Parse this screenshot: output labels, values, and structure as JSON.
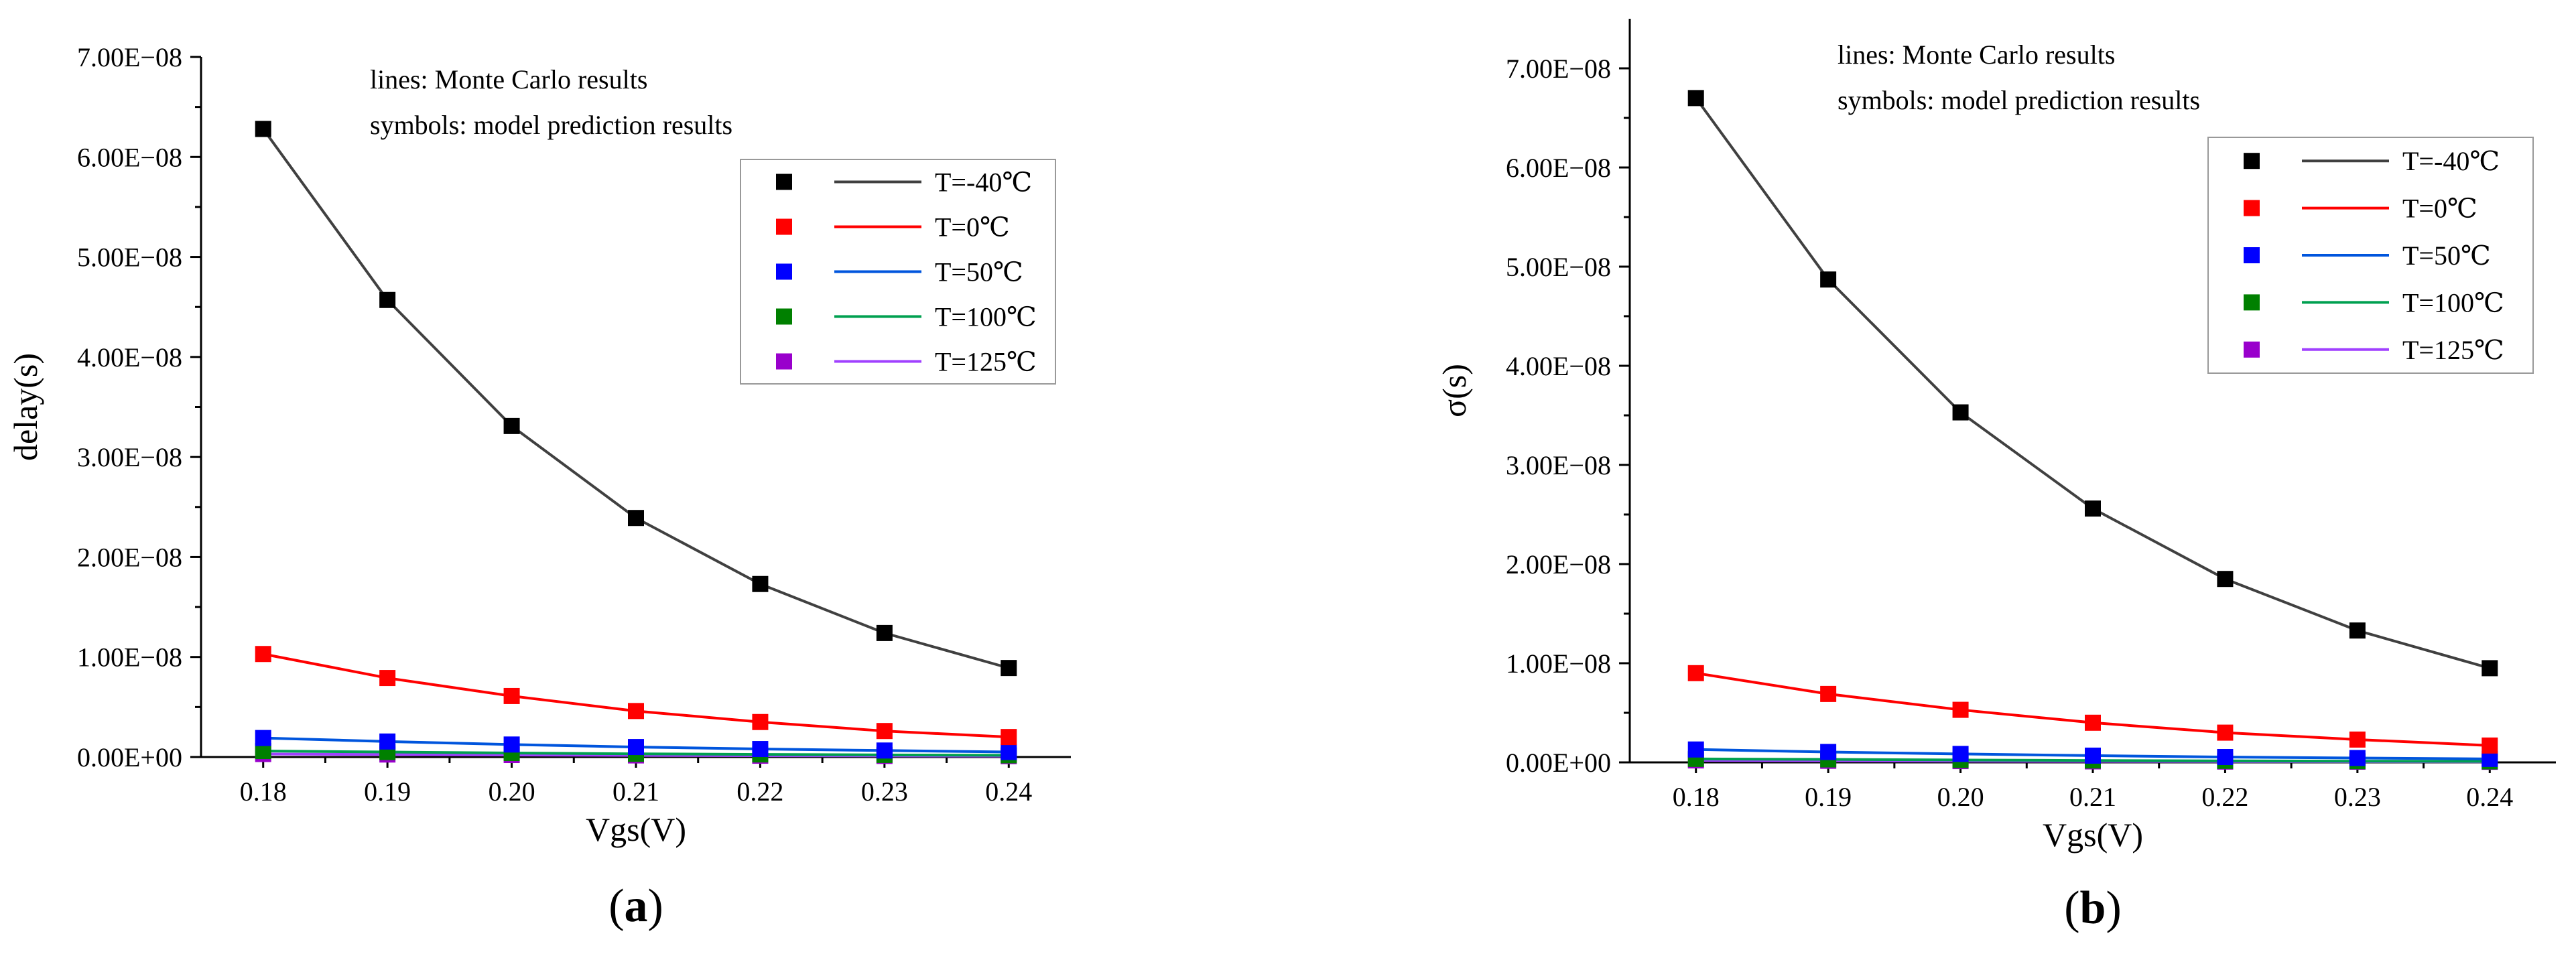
{
  "chart_data": [
    {
      "type": "line",
      "panel_label": "a",
      "title": "",
      "xlabel": "Vgs(V)",
      "ylabel": "delay(s)",
      "xlim": [
        0.175,
        0.245
      ],
      "ylim": [
        0,
        7e-08
      ],
      "x": [
        0.18,
        0.19,
        0.2,
        0.21,
        0.22,
        0.23,
        0.24
      ],
      "x_tick_labels": [
        "0.18",
        "0.19",
        "0.20",
        "0.21",
        "0.22",
        "0.23",
        "0.24"
      ],
      "y_tick_values": [
        0,
        1e-08,
        2e-08,
        3e-08,
        4e-08,
        5e-08,
        6e-08,
        7e-08
      ],
      "y_tick_labels": [
        "0.00E+00",
        "1.00E−08",
        "2.00E−08",
        "3.00E−08",
        "4.00E−08",
        "5.00E−08",
        "6.00E−08",
        "7.00E−08"
      ],
      "annotations": [
        "lines: Monte Carlo results",
        "symbols: model prediction results"
      ],
      "legend_position": "top-right",
      "series": [
        {
          "name": "T=-40℃",
          "color": "#404040",
          "marker_color": "#000000",
          "values": [
            6.28e-08,
            4.57e-08,
            3.31e-08,
            2.39e-08,
            1.73e-08,
            1.24e-08,
            8.9e-09
          ]
        },
        {
          "name": "T=0℃",
          "color": "#ff0000",
          "marker_color": "#ff0000",
          "values": [
            1.03e-08,
            7.9e-09,
            6.1e-09,
            4.6e-09,
            3.5e-09,
            2.6e-09,
            2e-09
          ]
        },
        {
          "name": "T=50℃",
          "color": "#0055dd",
          "marker_color": "#0000ff",
          "values": [
            1.9e-09,
            1.55e-09,
            1.25e-09,
            1e-09,
            8e-10,
            6.5e-10,
            5e-10
          ]
        },
        {
          "name": "T=100℃",
          "color": "#00a050",
          "marker_color": "#008000",
          "values": [
            6e-10,
            5e-10,
            4e-10,
            3.2e-10,
            2.6e-10,
            2.1e-10,
            1.7e-10
          ]
        },
        {
          "name": "T=125℃",
          "color": "#a040ff",
          "marker_color": "#9900cc",
          "values": [
            3e-10,
            2.5e-10,
            2e-10,
            1.6e-10,
            1.3e-10,
            1.1e-10,
            9e-11
          ]
        }
      ]
    },
    {
      "type": "line",
      "panel_label": "b",
      "title": "",
      "xlabel": "Vgs(V)",
      "ylabel": "σ(s)",
      "xlim": [
        0.175,
        0.245
      ],
      "ylim": [
        0,
        7.5e-08
      ],
      "x": [
        0.18,
        0.19,
        0.2,
        0.21,
        0.22,
        0.23,
        0.24
      ],
      "x_tick_labels": [
        "0.18",
        "0.19",
        "0.20",
        "0.21",
        "0.22",
        "0.23",
        "0.24"
      ],
      "y_tick_values": [
        0,
        1e-08,
        2e-08,
        3e-08,
        4e-08,
        5e-08,
        6e-08,
        7e-08
      ],
      "y_tick_labels": [
        "0.00E+00",
        "1.00E−08",
        "2.00E−08",
        "3.00E−08",
        "4.00E−08",
        "5.00E−08",
        "6.00E−08",
        "7.00E−08"
      ],
      "annotations": [
        "lines: Monte Carlo results",
        "symbols: model prediction results"
      ],
      "legend_position": "top-right",
      "series": [
        {
          "name": "T=-40℃",
          "color": "#404040",
          "marker_color": "#000000",
          "values": [
            6.7e-08,
            4.87e-08,
            3.53e-08,
            2.56e-08,
            1.85e-08,
            1.33e-08,
            9.5e-09
          ]
        },
        {
          "name": "T=0℃",
          "color": "#ff0000",
          "marker_color": "#ff0000",
          "values": [
            9e-09,
            6.9e-09,
            5.3e-09,
            4e-09,
            3e-09,
            2.3e-09,
            1.7e-09
          ]
        },
        {
          "name": "T=50℃",
          "color": "#0055dd",
          "marker_color": "#0000ff",
          "values": [
            1.3e-09,
            1.05e-09,
            8.5e-10,
            6.8e-10,
            5.4e-10,
            4.4e-10,
            3.5e-10
          ]
        },
        {
          "name": "T=100℃",
          "color": "#00a050",
          "marker_color": "#008000",
          "values": [
            3.5e-10,
            3e-10,
            2.4e-10,
            1.9e-10,
            1.5e-10,
            1.2e-10,
            1e-10
          ]
        },
        {
          "name": "T=125℃",
          "color": "#a040ff",
          "marker_color": "#9900cc",
          "values": [
            2e-10,
            1.6e-10,
            1.3e-10,
            1e-10,
            8e-11,
            7e-11,
            6e-11
          ]
        }
      ]
    }
  ]
}
